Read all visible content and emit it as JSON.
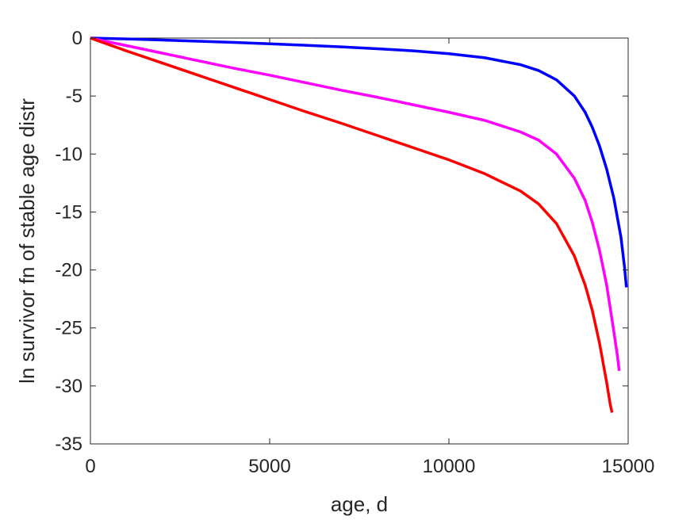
{
  "chart_data": {
    "type": "line",
    "title": "",
    "xlabel": "age, d",
    "ylabel": "ln survivor fn of stable age distr",
    "xlim": [
      0,
      15000
    ],
    "ylim": [
      -35,
      0
    ],
    "xticks": [
      0,
      5000,
      10000,
      15000
    ],
    "xtick_labels": [
      "0",
      "5000",
      "10000",
      "15000"
    ],
    "yticks": [
      0,
      -5,
      -10,
      -15,
      -20,
      -25,
      -30,
      -35
    ],
    "ytick_labels": [
      "0",
      "-5",
      "-10",
      "-15",
      "-20",
      "-25",
      "-30",
      "-35"
    ],
    "grid": false,
    "legend": "none",
    "series": [
      {
        "color": "#0000ff",
        "x": [
          0,
          1000,
          2000,
          3000,
          4000,
          5000,
          6000,
          7000,
          8000,
          9000,
          10000,
          11000,
          12000,
          12500,
          13000,
          13500,
          13800,
          14000,
          14200,
          14400,
          14600,
          14800,
          14900,
          14950
        ],
        "y": [
          0,
          -0.08,
          -0.17,
          -0.27,
          -0.38,
          -0.5,
          -0.62,
          -0.76,
          -0.92,
          -1.1,
          -1.35,
          -1.7,
          -2.3,
          -2.8,
          -3.6,
          -5.0,
          -6.4,
          -7.7,
          -9.3,
          -11.3,
          -13.8,
          -17.2,
          -19.8,
          -21.5
        ]
      },
      {
        "color": "#ff00ff",
        "x": [
          0,
          1000,
          2000,
          3000,
          4000,
          5000,
          6000,
          7000,
          8000,
          9000,
          10000,
          11000,
          12000,
          12500,
          13000,
          13500,
          13800,
          14000,
          14200,
          14400,
          14600,
          14700,
          14750
        ],
        "y": [
          0,
          -0.65,
          -1.3,
          -1.95,
          -2.6,
          -3.2,
          -3.85,
          -4.5,
          -5.1,
          -5.75,
          -6.4,
          -7.1,
          -8.1,
          -8.8,
          -10.0,
          -12.1,
          -14.0,
          -15.9,
          -18.3,
          -21.3,
          -25.3,
          -27.4,
          -28.7
        ]
      },
      {
        "color": "#ff0000",
        "x": [
          0,
          1000,
          2000,
          3000,
          4000,
          5000,
          6000,
          7000,
          8000,
          9000,
          10000,
          11000,
          12000,
          12500,
          13000,
          13500,
          13800,
          14000,
          14200,
          14400,
          14500,
          14550
        ],
        "y": [
          0,
          -1.1,
          -2.15,
          -3.2,
          -4.25,
          -5.3,
          -6.35,
          -7.35,
          -8.4,
          -9.45,
          -10.5,
          -11.7,
          -13.2,
          -14.3,
          -16.0,
          -18.8,
          -21.3,
          -23.5,
          -26.3,
          -29.7,
          -31.6,
          -32.3
        ]
      }
    ]
  }
}
